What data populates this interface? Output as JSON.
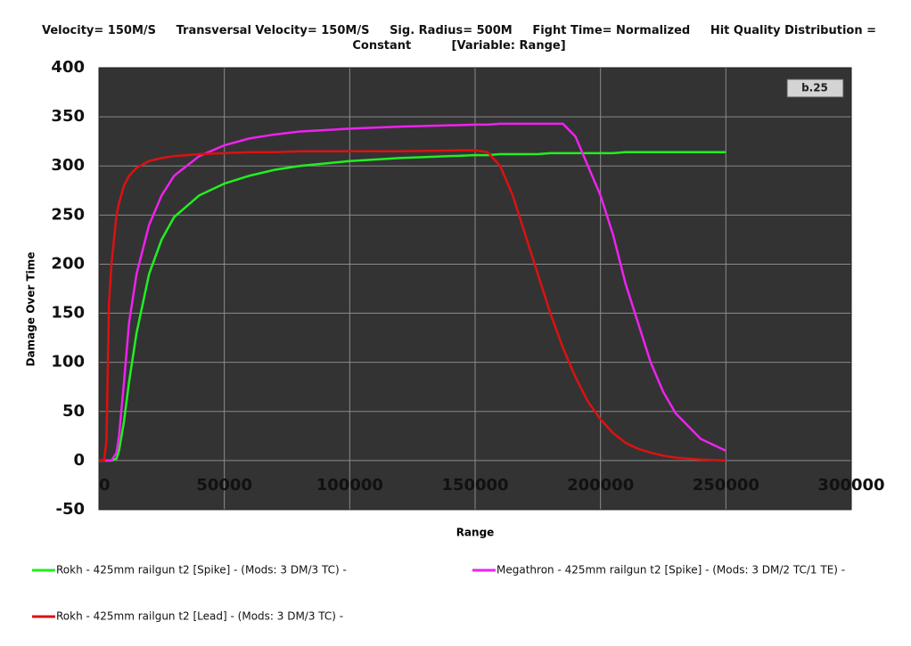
{
  "chart_data": {
    "type": "line",
    "title": "Velocity= 150M/S     Transversal Velocity= 150M/S     Sig. Radius= 500M     Fight Time= Normalized     Hit Quality Distribution = Constant          [Variable: Range]",
    "badge": "b.25",
    "x_label": "Range",
    "y_label": "Damage Over Time",
    "x": [
      0,
      2000,
      3000,
      4000,
      5000,
      7000,
      8000,
      10000,
      12000,
      15000,
      20000,
      25000,
      30000,
      40000,
      50000,
      60000,
      70000,
      80000,
      100000,
      120000,
      150000,
      155000,
      160000,
      165000,
      170000,
      175000,
      180000,
      185000,
      190000,
      195000,
      200000,
      205000,
      210000,
      215000,
      220000,
      225000,
      230000,
      240000,
      250000
    ],
    "series": [
      {
        "name": "Rokh - 425mm railgun t2 [Spike] - (Mods: 3 DM/3 TC) -",
        "color": "#22ee22",
        "values": [
          0,
          0,
          0,
          0,
          0,
          2,
          10,
          40,
          80,
          130,
          190,
          225,
          248,
          270,
          282,
          290,
          296,
          300,
          305,
          308,
          311,
          311,
          312,
          312,
          312,
          312,
          313,
          313,
          313,
          313,
          313,
          313,
          314,
          314,
          314,
          314,
          314,
          314,
          314
        ]
      },
      {
        "name": "Megathron - 425mm railgun t2 [Spike] - (Mods: 3 DM/2 TC/1 TE) -",
        "color": "#ee22ee",
        "values": [
          0,
          0,
          0,
          0,
          0,
          8,
          25,
          80,
          140,
          190,
          240,
          270,
          290,
          310,
          321,
          328,
          332,
          335,
          338,
          340,
          342,
          342,
          343,
          343,
          343,
          343,
          343,
          343,
          330,
          300,
          270,
          230,
          180,
          140,
          100,
          70,
          48,
          22,
          10
        ]
      },
      {
        "name": "Rokh - 425mm railgun t2 [Lead] - (Mods: 3 DM/3 TC) -",
        "color": "#dd1111",
        "values": [
          0,
          0,
          20,
          160,
          200,
          250,
          262,
          280,
          290,
          298,
          305,
          308,
          310,
          312,
          313,
          314,
          314,
          315,
          315,
          315,
          316,
          314,
          300,
          270,
          230,
          190,
          150,
          115,
          85,
          60,
          42,
          28,
          18,
          12,
          8,
          5,
          3,
          1,
          0
        ]
      }
    ],
    "xlim": [
      0,
      300000
    ],
    "xticks": [
      0,
      50000,
      100000,
      150000,
      200000,
      250000,
      300000
    ],
    "ylim": [
      -50,
      400
    ],
    "yticks": [
      -50,
      0,
      50,
      100,
      150,
      200,
      250,
      300,
      350,
      400
    ],
    "grid": true
  }
}
